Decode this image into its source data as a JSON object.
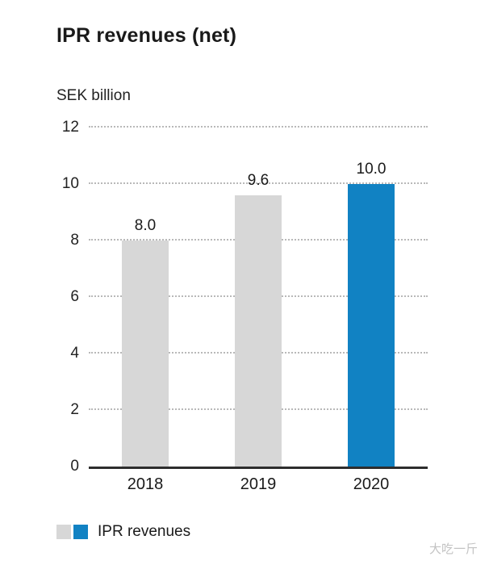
{
  "title": "IPR revenues (net)",
  "chart_data": {
    "type": "bar",
    "title": "IPR revenues (net)",
    "unit_label": "SEK billion",
    "categories": [
      "2018",
      "2019",
      "2020"
    ],
    "values": [
      8.0,
      9.6,
      10.0
    ],
    "value_labels": [
      "8.0",
      "9.6",
      "10.0"
    ],
    "bar_colors": [
      "#d7d7d7",
      "#d7d7d7",
      "#1182c3"
    ],
    "ylim": [
      0,
      12
    ],
    "yticks": [
      0,
      2,
      4,
      6,
      8,
      10,
      12
    ],
    "grid": "dotted-horizontal",
    "legend": {
      "label": "IPR revenues",
      "swatch_colors": [
        "#d7d7d7",
        "#1182c3"
      ],
      "position": "bottom-left"
    }
  },
  "watermark": "大吃一斤"
}
